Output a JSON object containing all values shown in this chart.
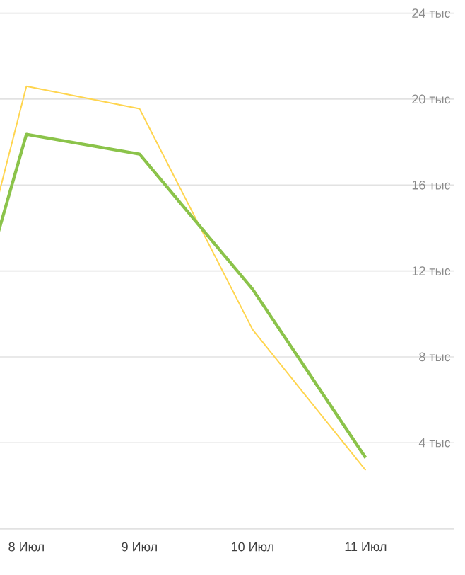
{
  "chart_data": {
    "type": "line",
    "categories": [
      null,
      "8 Июл",
      "9 Июл",
      "10 Июл",
      "11 Июл"
    ],
    "series": [
      {
        "color": "#ffd54f",
        "values": [
          0,
          20.6,
          19.55,
          9.27,
          2.72
        ]
      },
      {
        "color": "#8bc34a",
        "values": [
          0,
          18.36,
          17.44,
          11.15,
          3.3
        ]
      }
    ],
    "ylim": [
      0,
      24
    ],
    "yticks": [
      {
        "value": 0,
        "label": null
      },
      {
        "value": 4,
        "label": "4 тыс"
      },
      {
        "value": 8,
        "label": "8 тыс"
      },
      {
        "value": 12,
        "label": "12 тыс"
      },
      {
        "value": 16,
        "label": "16 тыс"
      },
      {
        "value": 20,
        "label": "20 тыс"
      },
      {
        "value": 24,
        "label": "24 тыс"
      }
    ],
    "grid": "y",
    "legend": false,
    "marker": "none",
    "line_style": "solid"
  }
}
